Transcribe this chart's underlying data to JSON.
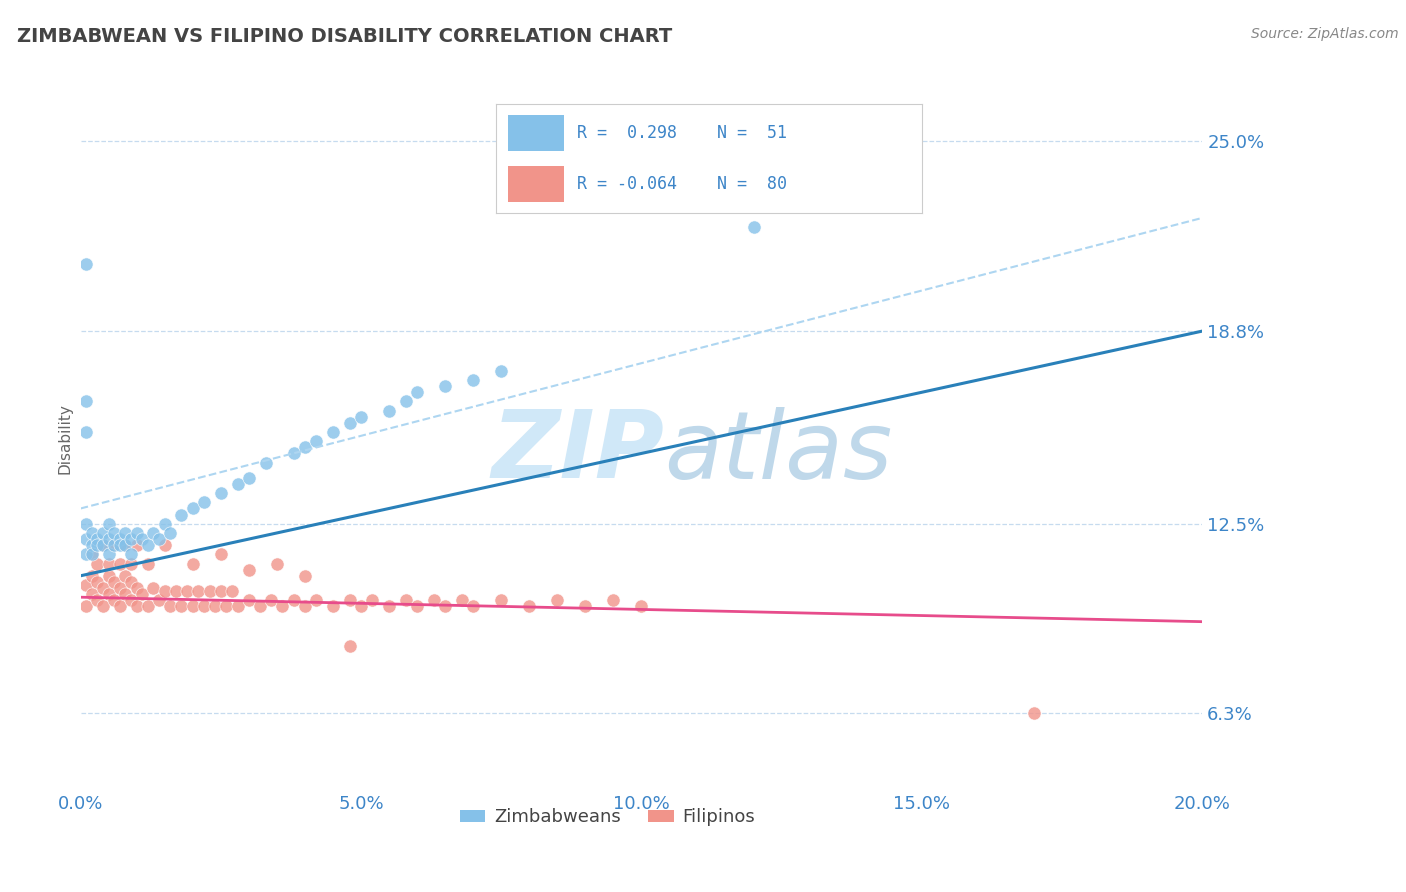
{
  "title": "ZIMBABWEAN VS FILIPINO DISABILITY CORRELATION CHART",
  "source": "Source: ZipAtlas.com",
  "ylabel": "Disability",
  "xlim": [
    0.0,
    0.2
  ],
  "ylim": [
    0.038,
    0.268
  ],
  "yticks": [
    0.063,
    0.125,
    0.188,
    0.25
  ],
  "ytick_labels": [
    "6.3%",
    "12.5%",
    "18.8%",
    "25.0%"
  ],
  "xticks": [
    0.0,
    0.05,
    0.1,
    0.15,
    0.2
  ],
  "xtick_labels": [
    "0.0%",
    "5.0%",
    "10.0%",
    "15.0%",
    "20.0%"
  ],
  "blue_color": "#85c1e9",
  "pink_color": "#f1948a",
  "trend_blue_color": "#2980b9",
  "trend_pink_color": "#e74c8b",
  "dashed_color": "#aed6f1",
  "watermark_color": "#d0e8f8",
  "blue_trend_x0": 0.0,
  "blue_trend_y0": 0.108,
  "blue_trend_x1": 0.2,
  "blue_trend_y1": 0.188,
  "pink_trend_x0": 0.0,
  "pink_trend_y0": 0.101,
  "pink_trend_x1": 0.2,
  "pink_trend_y1": 0.093,
  "dash_trend_x0": 0.0,
  "dash_trend_y0": 0.13,
  "dash_trend_x1": 0.2,
  "dash_trend_y1": 0.225,
  "zimbabwe_x": [
    0.001,
    0.001,
    0.001,
    0.002,
    0.002,
    0.002,
    0.003,
    0.003,
    0.004,
    0.004,
    0.005,
    0.005,
    0.005,
    0.006,
    0.006,
    0.007,
    0.007,
    0.008,
    0.008,
    0.009,
    0.009,
    0.01,
    0.011,
    0.012,
    0.013,
    0.014,
    0.015,
    0.016,
    0.018,
    0.02,
    0.022,
    0.025,
    0.028,
    0.03,
    0.033,
    0.038,
    0.04,
    0.042,
    0.045,
    0.048,
    0.05,
    0.055,
    0.058,
    0.06,
    0.065,
    0.07,
    0.075,
    0.001,
    0.12,
    0.001,
    0.001
  ],
  "zimbabwe_y": [
    0.12,
    0.125,
    0.115,
    0.118,
    0.122,
    0.115,
    0.12,
    0.118,
    0.122,
    0.118,
    0.12,
    0.115,
    0.125,
    0.118,
    0.122,
    0.12,
    0.118,
    0.122,
    0.118,
    0.12,
    0.115,
    0.122,
    0.12,
    0.118,
    0.122,
    0.12,
    0.125,
    0.122,
    0.128,
    0.13,
    0.132,
    0.135,
    0.138,
    0.14,
    0.145,
    0.148,
    0.15,
    0.152,
    0.155,
    0.158,
    0.16,
    0.162,
    0.165,
    0.168,
    0.17,
    0.172,
    0.175,
    0.21,
    0.222,
    0.165,
    0.155
  ],
  "filipino_x": [
    0.001,
    0.001,
    0.002,
    0.002,
    0.003,
    0.003,
    0.004,
    0.004,
    0.005,
    0.005,
    0.006,
    0.006,
    0.007,
    0.007,
    0.008,
    0.008,
    0.009,
    0.009,
    0.01,
    0.01,
    0.011,
    0.012,
    0.013,
    0.014,
    0.015,
    0.016,
    0.017,
    0.018,
    0.019,
    0.02,
    0.021,
    0.022,
    0.023,
    0.024,
    0.025,
    0.026,
    0.027,
    0.028,
    0.03,
    0.032,
    0.034,
    0.036,
    0.038,
    0.04,
    0.042,
    0.045,
    0.048,
    0.05,
    0.052,
    0.055,
    0.058,
    0.06,
    0.063,
    0.065,
    0.068,
    0.07,
    0.075,
    0.08,
    0.085,
    0.09,
    0.095,
    0.1,
    0.002,
    0.003,
    0.004,
    0.005,
    0.006,
    0.007,
    0.008,
    0.009,
    0.01,
    0.012,
    0.015,
    0.02,
    0.025,
    0.03,
    0.035,
    0.04,
    0.17,
    0.048
  ],
  "filipino_y": [
    0.098,
    0.105,
    0.102,
    0.108,
    0.1,
    0.106,
    0.098,
    0.104,
    0.102,
    0.108,
    0.1,
    0.106,
    0.098,
    0.104,
    0.102,
    0.108,
    0.1,
    0.106,
    0.098,
    0.104,
    0.102,
    0.098,
    0.104,
    0.1,
    0.103,
    0.098,
    0.103,
    0.098,
    0.103,
    0.098,
    0.103,
    0.098,
    0.103,
    0.098,
    0.103,
    0.098,
    0.103,
    0.098,
    0.1,
    0.098,
    0.1,
    0.098,
    0.1,
    0.098,
    0.1,
    0.098,
    0.1,
    0.098,
    0.1,
    0.098,
    0.1,
    0.098,
    0.1,
    0.098,
    0.1,
    0.098,
    0.1,
    0.098,
    0.1,
    0.098,
    0.1,
    0.098,
    0.115,
    0.112,
    0.118,
    0.112,
    0.118,
    0.112,
    0.118,
    0.112,
    0.118,
    0.112,
    0.118,
    0.112,
    0.115,
    0.11,
    0.112,
    0.108,
    0.063,
    0.085
  ]
}
